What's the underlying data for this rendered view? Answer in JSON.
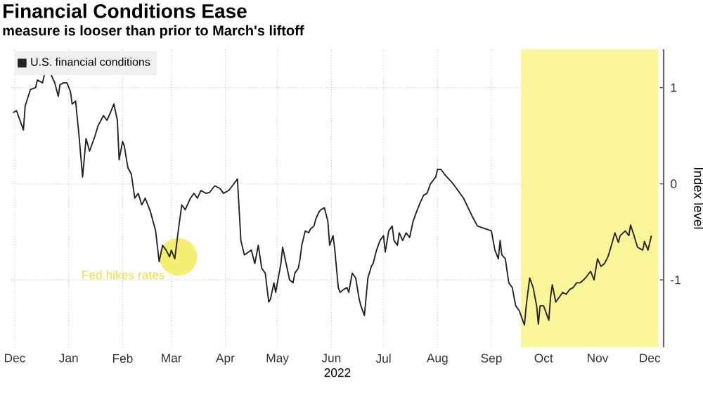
{
  "chart_data": {
    "type": "line",
    "title": "Financial Conditions Ease",
    "subtitle": "measure is looser than prior to March's liftoff",
    "xlabel": "2022",
    "ylabel": "Index level",
    "xlim": [
      "2021-12-13",
      "2022-12-23"
    ],
    "ylim": [
      -1.7,
      1.4
    ],
    "yticks": [
      -1,
      0,
      1
    ],
    "xticks": [
      {
        "value": "2021-12-15",
        "label": "Dec"
      },
      {
        "value": "2022-01-15",
        "label": "Jan"
      },
      {
        "value": "2022-02-15",
        "label": "Feb"
      },
      {
        "value": "2022-03-15",
        "label": "Mar"
      },
      {
        "value": "2022-04-15",
        "label": "Apr"
      },
      {
        "value": "2022-05-15",
        "label": "May"
      },
      {
        "value": "2022-06-15",
        "label": "Jun"
      },
      {
        "value": "2022-07-15",
        "label": "Jul"
      },
      {
        "value": "2022-08-15",
        "label": "Aug"
      },
      {
        "value": "2022-09-15",
        "label": "Sep"
      },
      {
        "value": "2022-10-15",
        "label": "Oct"
      },
      {
        "value": "2022-11-15",
        "label": "Nov"
      },
      {
        "value": "2022-12-15",
        "label": "Dec"
      }
    ],
    "grid": true,
    "legend": "top left",
    "annotations": [
      {
        "text": "Fed hikes rates",
        "x": "2022-03-19",
        "y": -0.76
      }
    ],
    "bands": [
      {
        "axis": "x",
        "from": "2022-10-02",
        "to": "2022-12-20",
        "color": "#fbf59a"
      }
    ],
    "series": [
      {
        "name": "U.S. financial conditions",
        "color": "#222222",
        "x": [
          "2021-12-14",
          "2021-12-16",
          "2021-12-20",
          "2021-12-21",
          "2021-12-24",
          "2021-12-27",
          "2021-12-28",
          "2021-12-31",
          "2022-01-01",
          "2022-01-03",
          "2022-01-05",
          "2022-01-07",
          "2022-01-09",
          "2022-01-10",
          "2022-01-12",
          "2022-01-14",
          "2022-01-16",
          "2022-01-17",
          "2022-01-19",
          "2022-01-21",
          "2022-01-23",
          "2022-01-25",
          "2022-01-27",
          "2022-01-30",
          "2022-02-01",
          "2022-02-02",
          "2022-02-04",
          "2022-02-06",
          "2022-02-08",
          "2022-02-10",
          "2022-02-12",
          "2022-02-13",
          "2022-02-15",
          "2022-02-16",
          "2022-02-18",
          "2022-02-20",
          "2022-02-22",
          "2022-02-24",
          "2022-02-26",
          "2022-02-28",
          "2022-03-03",
          "2022-03-06",
          "2022-03-08",
          "2022-03-10",
          "2022-03-12",
          "2022-03-14",
          "2022-03-15",
          "2022-03-17",
          "2022-03-19",
          "2022-03-21",
          "2022-03-23",
          "2022-03-26",
          "2022-03-28",
          "2022-03-30",
          "2022-04-01",
          "2022-04-04",
          "2022-04-06",
          "2022-04-09",
          "2022-04-12",
          "2022-04-14",
          "2022-04-17",
          "2022-04-20",
          "2022-04-22",
          "2022-04-24",
          "2022-04-26",
          "2022-04-30",
          "2022-05-02",
          "2022-05-04",
          "2022-05-06",
          "2022-05-08",
          "2022-05-10",
          "2022-05-11",
          "2022-05-13",
          "2022-05-14",
          "2022-05-16",
          "2022-05-17",
          "2022-05-18",
          "2022-05-20",
          "2022-05-22",
          "2022-05-24",
          "2022-05-25",
          "2022-05-27",
          "2022-05-28",
          "2022-05-29",
          "2022-05-31",
          "2022-06-02",
          "2022-06-03",
          "2022-06-05",
          "2022-06-06",
          "2022-06-08",
          "2022-06-09",
          "2022-06-11",
          "2022-06-13",
          "2022-06-14",
          "2022-06-16",
          "2022-06-17",
          "2022-06-19",
          "2022-06-20",
          "2022-06-22",
          "2022-06-24",
          "2022-06-25",
          "2022-06-27",
          "2022-06-29",
          "2022-07-01",
          "2022-07-02",
          "2022-07-04",
          "2022-07-06",
          "2022-07-08",
          "2022-07-09",
          "2022-07-11",
          "2022-07-13",
          "2022-07-15",
          "2022-07-16",
          "2022-07-18",
          "2022-07-20",
          "2022-07-21",
          "2022-07-23",
          "2022-07-24",
          "2022-07-26",
          "2022-07-28",
          "2022-07-30",
          "2022-08-01",
          "2022-08-03",
          "2022-08-05",
          "2022-08-07",
          "2022-08-09",
          "2022-08-11",
          "2022-08-14",
          "2022-08-15",
          "2022-08-17",
          "2022-08-19",
          "2022-08-24",
          "2022-08-30",
          "2022-09-04",
          "2022-09-07",
          "2022-09-15",
          "2022-09-17",
          "2022-09-19",
          "2022-09-20",
          "2022-09-21",
          "2022-09-23",
          "2022-09-25",
          "2022-09-27",
          "2022-09-28",
          "2022-09-29",
          "2022-10-01",
          "2022-10-02",
          "2022-10-04",
          "2022-10-05",
          "2022-10-07",
          "2022-10-09",
          "2022-10-11",
          "2022-10-12",
          "2022-10-13",
          "2022-10-15",
          "2022-10-18",
          "2022-10-19",
          "2022-10-20",
          "2022-10-22",
          "2022-10-24",
          "2022-10-26",
          "2022-10-28",
          "2022-10-30",
          "2022-11-01",
          "2022-11-03",
          "2022-11-05",
          "2022-11-07",
          "2022-11-09",
          "2022-11-11",
          "2022-11-13",
          "2022-11-15",
          "2022-11-17",
          "2022-11-19",
          "2022-11-21",
          "2022-11-23",
          "2022-11-25",
          "2022-11-27",
          "2022-11-28",
          "2022-12-01",
          "2022-12-03",
          "2022-12-04",
          "2022-12-06",
          "2022-12-08",
          "2022-12-11",
          "2022-12-12",
          "2022-12-14",
          "2022-12-16"
        ],
        "values": [
          0.74,
          0.76,
          0.56,
          0.81,
          0.98,
          1.0,
          1.08,
          1.05,
          1.13,
          1.15,
          1.13,
          1.05,
          0.91,
          1.03,
          1.05,
          1.05,
          0.96,
          0.83,
          0.86,
          0.49,
          0.07,
          0.47,
          0.34,
          0.49,
          0.61,
          0.64,
          0.71,
          0.66,
          0.74,
          0.83,
          0.66,
          0.25,
          0.44,
          0.39,
          0.17,
          0.1,
          -0.15,
          -0.1,
          -0.22,
          -0.15,
          -0.29,
          -0.49,
          -0.81,
          -0.64,
          -0.69,
          -0.76,
          -0.69,
          -0.78,
          -0.49,
          -0.22,
          -0.27,
          -0.15,
          -0.1,
          -0.15,
          -0.07,
          -0.1,
          -0.09,
          -0.02,
          -0.05,
          -0.1,
          -0.07,
          0,
          0.05,
          -0.59,
          -0.74,
          -0.69,
          -0.83,
          -0.64,
          -0.88,
          -0.93,
          -1.23,
          -1.2,
          -1.03,
          -1.13,
          -0.93,
          -0.83,
          -0.66,
          -0.83,
          -1.0,
          -1.03,
          -0.93,
          -0.88,
          -0.78,
          -0.64,
          -0.49,
          -0.51,
          -0.47,
          -0.44,
          -0.37,
          -0.29,
          -0.27,
          -0.25,
          -0.39,
          -0.64,
          -0.54,
          -0.69,
          -1.08,
          -1.13,
          -1.1,
          -1.08,
          -1.13,
          -0.93,
          -0.98,
          -1.2,
          -1.27,
          -1.37,
          -0.98,
          -0.86,
          -0.83,
          -0.69,
          -0.59,
          -0.54,
          -0.71,
          -0.49,
          -0.44,
          -0.59,
          -0.64,
          -0.51,
          -0.59,
          -0.51,
          -0.56,
          -0.39,
          -0.29,
          -0.2,
          -0.12,
          -0.1,
          0,
          0.07,
          0.15,
          0.15,
          0.1,
          0.0,
          -0.15,
          -0.34,
          -0.44,
          -0.49,
          -0.69,
          -0.78,
          -0.59,
          -0.74,
          -0.78,
          -1.03,
          -1.08,
          -1.18,
          -1.27,
          -1.32,
          -1.37,
          -1.47,
          -1.27,
          -0.98,
          -1.08,
          -1.27,
          -1.46,
          -1.27,
          -1.27,
          -1.42,
          -1.18,
          -1.05,
          -1.23,
          -1.18,
          -1.13,
          -1.15,
          -1.1,
          -1.08,
          -1.03,
          -1.03,
          -1.0,
          -0.96,
          -0.91,
          -1.0,
          -0.78,
          -0.86,
          -0.83,
          -0.76,
          -0.64,
          -0.51,
          -0.61,
          -0.54,
          -0.49,
          -0.54,
          -0.43,
          -0.54,
          -0.66,
          -0.69,
          -0.6,
          -0.69,
          -0.54
        ]
      }
    ]
  }
}
